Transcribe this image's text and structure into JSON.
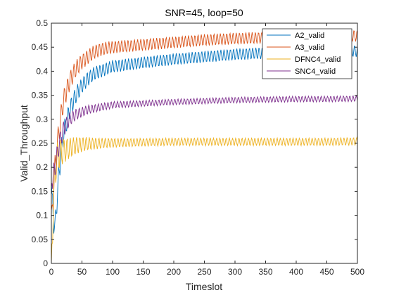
{
  "chart_data": {
    "type": "line",
    "title": "SNR=45, loop=50",
    "xlabel": "Timeslot",
    "ylabel": "Valid_Throughput",
    "xlim": [
      0,
      500
    ],
    "ylim": [
      0,
      0.5
    ],
    "xticks": [
      "0",
      "50",
      "100",
      "150",
      "200",
      "250",
      "300",
      "350",
      "400",
      "450",
      "500"
    ],
    "yticks": [
      "0",
      "0.05",
      "0.1",
      "0.15",
      "0.2",
      "0.25",
      "0.3",
      "0.35",
      "0.4",
      "0.45",
      "0.5"
    ],
    "grid": false,
    "legend_position": "top-right",
    "series": [
      {
        "name": "A2_valid",
        "color": "#0072BD",
        "oscillation": [
          0.03,
          0.012
        ],
        "points": [
          [
            0,
            0.17
          ],
          [
            3,
            0.1
          ],
          [
            6,
            0.07
          ],
          [
            10,
            0.15
          ],
          [
            15,
            0.22
          ],
          [
            20,
            0.27
          ],
          [
            30,
            0.32
          ],
          [
            40,
            0.35
          ],
          [
            50,
            0.37
          ],
          [
            60,
            0.385
          ],
          [
            70,
            0.395
          ],
          [
            80,
            0.4
          ],
          [
            90,
            0.405
          ],
          [
            100,
            0.41
          ],
          [
            120,
            0.413
          ],
          [
            150,
            0.418
          ],
          [
            200,
            0.425
          ],
          [
            250,
            0.43
          ],
          [
            300,
            0.435
          ],
          [
            350,
            0.438
          ],
          [
            400,
            0.44
          ],
          [
            450,
            0.441
          ],
          [
            500,
            0.442
          ]
        ]
      },
      {
        "name": "A3_valid",
        "color": "#D95319",
        "oscillation": [
          0.03,
          0.012
        ],
        "points": [
          [
            0,
            0.11
          ],
          [
            3,
            0.14
          ],
          [
            6,
            0.2
          ],
          [
            10,
            0.25
          ],
          [
            15,
            0.3
          ],
          [
            20,
            0.34
          ],
          [
            30,
            0.38
          ],
          [
            40,
            0.405
          ],
          [
            50,
            0.42
          ],
          [
            60,
            0.43
          ],
          [
            70,
            0.44
          ],
          [
            80,
            0.445
          ],
          [
            90,
            0.448
          ],
          [
            100,
            0.45
          ],
          [
            150,
            0.455
          ],
          [
            200,
            0.46
          ],
          [
            250,
            0.465
          ],
          [
            300,
            0.468
          ],
          [
            350,
            0.47
          ],
          [
            400,
            0.472
          ],
          [
            450,
            0.473
          ],
          [
            500,
            0.474
          ]
        ]
      },
      {
        "name": "DFNC4_valid",
        "color": "#EDB120",
        "oscillation": [
          0.04,
          0.008
        ],
        "points": [
          [
            0,
            0.0
          ],
          [
            3,
            0.12
          ],
          [
            6,
            0.19
          ],
          [
            10,
            0.22
          ],
          [
            15,
            0.23
          ],
          [
            20,
            0.235
          ],
          [
            30,
            0.24
          ],
          [
            40,
            0.245
          ],
          [
            50,
            0.248
          ],
          [
            60,
            0.249
          ],
          [
            80,
            0.25
          ],
          [
            100,
            0.251
          ],
          [
            150,
            0.252
          ],
          [
            200,
            0.253
          ],
          [
            250,
            0.253
          ],
          [
            300,
            0.253
          ],
          [
            350,
            0.253
          ],
          [
            400,
            0.253
          ],
          [
            450,
            0.253
          ],
          [
            500,
            0.254
          ]
        ]
      },
      {
        "name": "SNC4_valid",
        "color": "#7E2F8E",
        "oscillation": [
          0.025,
          0.006
        ],
        "points": [
          [
            0,
            0.16
          ],
          [
            3,
            0.18
          ],
          [
            6,
            0.2
          ],
          [
            10,
            0.23
          ],
          [
            15,
            0.26
          ],
          [
            20,
            0.28
          ],
          [
            30,
            0.3
          ],
          [
            40,
            0.31
          ],
          [
            50,
            0.315
          ],
          [
            60,
            0.32
          ],
          [
            80,
            0.325
          ],
          [
            100,
            0.33
          ],
          [
            150,
            0.333
          ],
          [
            200,
            0.336
          ],
          [
            250,
            0.338
          ],
          [
            300,
            0.34
          ],
          [
            350,
            0.341
          ],
          [
            400,
            0.342
          ],
          [
            450,
            0.342
          ],
          [
            500,
            0.343
          ]
        ]
      }
    ]
  }
}
